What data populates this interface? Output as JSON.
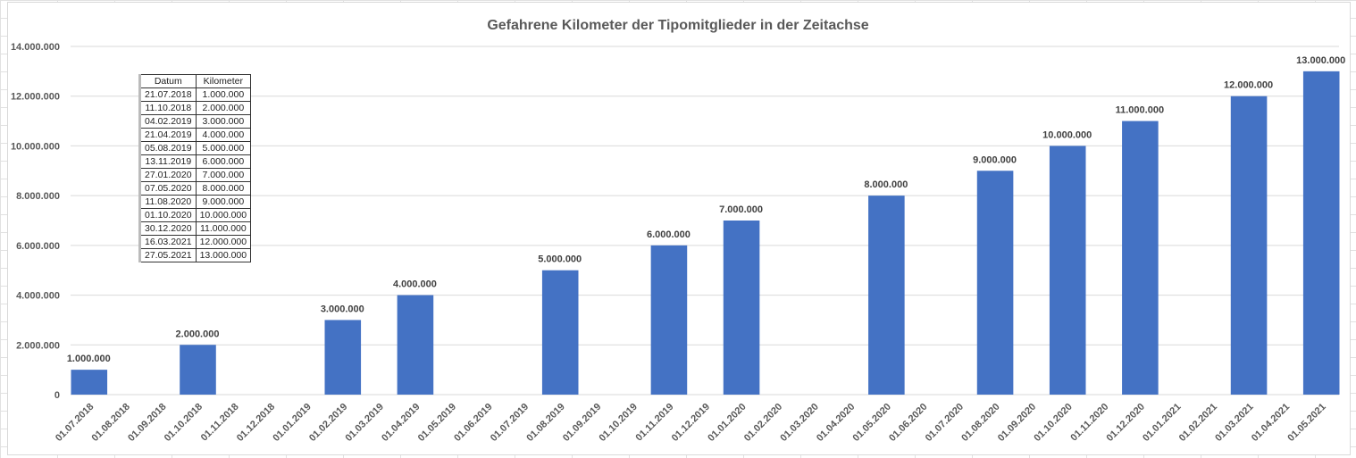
{
  "chart_data": {
    "type": "bar",
    "title": "Gefahrene Kilometer der Tipomitglieder in der Zeitachse",
    "xlabel": "",
    "ylabel": "",
    "ylim": [
      0,
      14000000
    ],
    "yticks": [
      "0",
      "2.000.000",
      "4.000.000",
      "6.000.000",
      "8.000.000",
      "10.000.000",
      "12.000.000",
      "14.000.000"
    ],
    "grid": true,
    "color": "#4472C4",
    "categories": [
      "01.07.2018",
      "01.08.2018",
      "01.09.2018",
      "01.10.2018",
      "01.11.2018",
      "01.12.2018",
      "01.01.2019",
      "01.02.2019",
      "01.03.2019",
      "01.04.2019",
      "01.05.2019",
      "01.06.2019",
      "01.07.2019",
      "01.08.2019",
      "01.09.2019",
      "01.10.2019",
      "01.11.2019",
      "01.12.2019",
      "01.01.2020",
      "01.02.2020",
      "01.03.2020",
      "01.04.2020",
      "01.05.2020",
      "01.06.2020",
      "01.07.2020",
      "01.08.2020",
      "01.09.2020",
      "01.10.2020",
      "01.11.2020",
      "01.12.2020",
      "01.01.2021",
      "01.02.2021",
      "01.03.2021",
      "01.04.2021",
      "01.05.2021"
    ],
    "values": [
      1000000,
      null,
      null,
      2000000,
      null,
      null,
      null,
      3000000,
      null,
      4000000,
      null,
      null,
      null,
      5000000,
      null,
      null,
      6000000,
      null,
      7000000,
      null,
      null,
      null,
      8000000,
      null,
      null,
      9000000,
      null,
      10000000,
      null,
      11000000,
      null,
      null,
      12000000,
      null,
      13000000
    ],
    "data_labels": [
      "1.000.000",
      null,
      null,
      "2.000.000",
      null,
      null,
      null,
      "3.000.000",
      null,
      "4.000.000",
      null,
      null,
      null,
      "5.000.000",
      null,
      null,
      "6.000.000",
      null,
      "7.000.000",
      null,
      null,
      null,
      "8.000.000",
      null,
      null,
      "9.000.000",
      null,
      "10.000.000",
      null,
      "11.000.000",
      null,
      null,
      "12.000.000",
      null,
      "13.000.000"
    ]
  },
  "table": {
    "headers": [
      "Datum",
      "Kilometer"
    ],
    "rows": [
      [
        "21.07.2018",
        "1.000.000"
      ],
      [
        "11.10.2018",
        "2.000.000"
      ],
      [
        "04.02.2019",
        "3.000.000"
      ],
      [
        "21.04.2019",
        "4.000.000"
      ],
      [
        "05.08.2019",
        "5.000.000"
      ],
      [
        "13.11.2019",
        "6.000.000"
      ],
      [
        "27.01.2020",
        "7.000.000"
      ],
      [
        "07.05.2020",
        "8.000.000"
      ],
      [
        "11.08.2020",
        "9.000.000"
      ],
      [
        "01.10.2020",
        "10.000.000"
      ],
      [
        "30.12.2020",
        "11.000.000"
      ],
      [
        "16.03.2021",
        "12.000.000"
      ],
      [
        "27.05.2021",
        "13.000.000"
      ]
    ]
  }
}
